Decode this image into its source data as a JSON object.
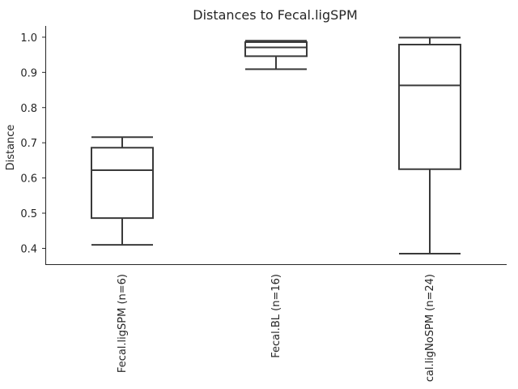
{
  "chart_data": {
    "type": "box",
    "title": "Distances to Fecal.ligSPM",
    "xlabel": "",
    "ylabel": "Distance",
    "ylim": [
      0.355,
      1.032
    ],
    "yticks": [
      0.4,
      0.5,
      0.6,
      0.7,
      0.8,
      0.9,
      1.0
    ],
    "ytick_labels": [
      "0.4",
      "0.5",
      "0.6",
      "0.7",
      "0.8",
      "0.9",
      "1.0"
    ],
    "grid": false,
    "categories": [
      "Fecal.ligSPM (n=6)",
      "Fecal.BL (n=16)",
      "cal.ligNoSPM (n=24)"
    ],
    "boxes": [
      {
        "category": "Fecal.ligSPM (n=6)",
        "whisker_low": 0.41,
        "q1": 0.486,
        "median": 0.622,
        "q3": 0.686,
        "whisker_high": 0.716
      },
      {
        "category": "Fecal.BL (n=16)",
        "whisker_low": 0.909,
        "q1": 0.946,
        "median": 0.971,
        "q3": 0.986,
        "whisker_high": 0.99
      },
      {
        "category": "cal.ligNoSPM (n=24)",
        "whisker_low": 0.385,
        "q1": 0.625,
        "median": 0.863,
        "q3": 0.979,
        "whisker_high": 0.999
      }
    ],
    "colors": {
      "line": "#3a3a3a",
      "box_fill": "#ffffff",
      "spine": "#262626"
    }
  }
}
